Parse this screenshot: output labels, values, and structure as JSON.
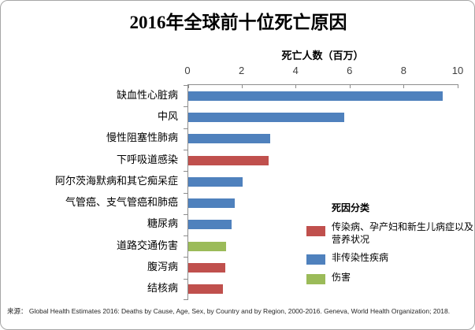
{
  "chart_data": {
    "type": "bar",
    "orientation": "horizontal",
    "title": "2016年全球前十位死亡原因",
    "value_axis_label": "死亡人数（百万）",
    "xlim": [
      0,
      10
    ],
    "x_ticks": [
      0,
      2,
      4,
      6,
      8,
      10
    ],
    "grid": false,
    "categories": [
      "缺血性心脏病",
      "中风",
      "慢性阻塞性肺病",
      "下呼吸道感染",
      "阿尔茨海默病和其它痴呆症",
      "气管癌、支气管癌和肺癌",
      "糖尿病",
      "道路交通伤害",
      "腹泻病",
      "结核病"
    ],
    "values": [
      9.43,
      5.78,
      3.04,
      2.96,
      2.0,
      1.71,
      1.6,
      1.4,
      1.38,
      1.29
    ],
    "bar_groups": [
      "noncommunicable",
      "noncommunicable",
      "noncommunicable",
      "communicable",
      "noncommunicable",
      "noncommunicable",
      "noncommunicable",
      "injury",
      "communicable",
      "communicable"
    ],
    "legend": {
      "position": "inside-bottom-right",
      "title": "死因分类",
      "items": [
        {
          "key": "communicable",
          "label": "传染病、孕产妇和新生儿病症以及营养状况",
          "color": "#C0504D"
        },
        {
          "key": "noncommunicable",
          "label": "非传染性疾病",
          "color": "#4F81BD"
        },
        {
          "key": "injury",
          "label": "伤害",
          "color": "#9BBB59"
        }
      ]
    },
    "source_note": "来源： Global Health Estimates 2016: Deaths by Cause, Age, Sex, by Country and by Region, 2000-2016. Geneva, World Health Organization; 2018.",
    "colors": {
      "axis_line": "#8C8C8C",
      "title_text": "#000000",
      "tick_text": "#3F3F3F",
      "frame_border": "#A6A6A6"
    }
  }
}
